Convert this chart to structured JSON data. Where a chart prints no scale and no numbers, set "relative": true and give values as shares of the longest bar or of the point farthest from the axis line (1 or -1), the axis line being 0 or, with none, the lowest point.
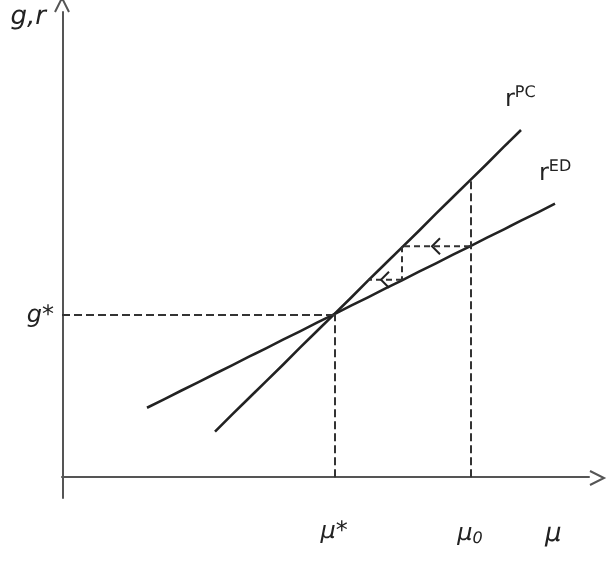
{
  "chart_data": {
    "type": "line",
    "relative": true,
    "xlabel": "μ",
    "ylabel": "g,r",
    "legend": false,
    "grid": false,
    "marker": "none",
    "line_style": "solid",
    "categories": [
      null,
      null,
      null,
      null,
      null,
      null,
      null,
      null,
      null,
      null,
      null,
      null,
      null,
      null,
      null,
      null,
      "μ*",
      null,
      null,
      null,
      null,
      null,
      null,
      null,
      "μ$_{0}$",
      null,
      null,
      null,
      null,
      null,
      null,
      null
    ],
    "series": [
      {
        "name": "r$^{PC}$",
        "color": "#222222",
        "values": [
          null,
          null,
          null,
          null,
          null,
          null,
          null,
          null,
          null,
          0.131,
          0.18,
          0.228,
          0.276,
          0.324,
          0.373,
          0.421,
          0.469,
          0.517,
          0.566,
          0.614,
          0.662,
          0.71,
          0.759,
          0.807,
          0.855,
          0.903,
          0.952,
          1.0,
          null,
          null,
          null,
          null
        ]
      },
      {
        "name": "r$^{ED}$",
        "color": "#222222",
        "values": [
          null,
          null,
          null,
          null,
          null,
          0.2,
          0.224,
          0.249,
          0.273,
          0.298,
          0.322,
          0.347,
          0.371,
          0.396,
          0.42,
          0.445,
          0.469,
          0.494,
          0.518,
          0.543,
          0.567,
          0.592,
          0.616,
          0.641,
          0.665,
          0.69,
          0.714,
          0.739,
          0.763,
          0.788,
          null,
          null
        ]
      }
    ],
    "ref_lines": [
      {
        "axis": "y",
        "value": 0.469,
        "label": "g*",
        "line_style": "dashed"
      },
      {
        "axis": "x",
        "value": "μ*",
        "line_style": "dashed"
      },
      {
        "axis": "x",
        "value": "μ$_{0}$",
        "line_style": "dashed"
      }
    ]
  }
}
